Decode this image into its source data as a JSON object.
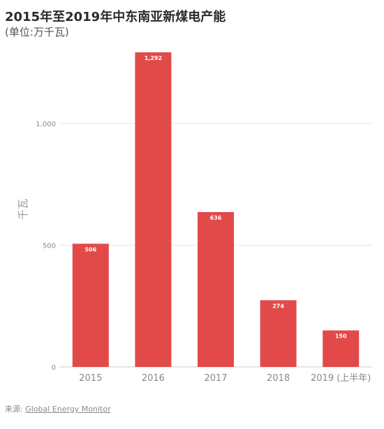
{
  "header": {
    "title": "2015年至2019年中东南亚新煤电产能",
    "subtitle": "(单位:万千瓦)"
  },
  "footer": {
    "source_label": "来源:",
    "source_link": "Global Energy Monitor"
  },
  "colors": {
    "bar": "#e24a4a",
    "grid": "#e6e6e6",
    "axis_text": "#888888"
  },
  "chart_data": {
    "type": "bar",
    "categories": [
      "2015",
      "2016",
      "2017",
      "2018",
      "2019 (上半年)"
    ],
    "values": [
      506,
      1292,
      636,
      274,
      150
    ],
    "value_labels": [
      "506",
      "1,292",
      "636",
      "274",
      "150"
    ],
    "title": "2015年至2019年中东南亚新煤电产能",
    "subtitle": "(单位:万千瓦)",
    "xlabel": "",
    "ylabel": "千瓦",
    "ylim": [
      0,
      1292
    ],
    "yticks": [
      0,
      500,
      1000
    ],
    "ytick_labels": [
      "0",
      "500",
      "1,000"
    ],
    "grid": true,
    "legend": "none"
  }
}
